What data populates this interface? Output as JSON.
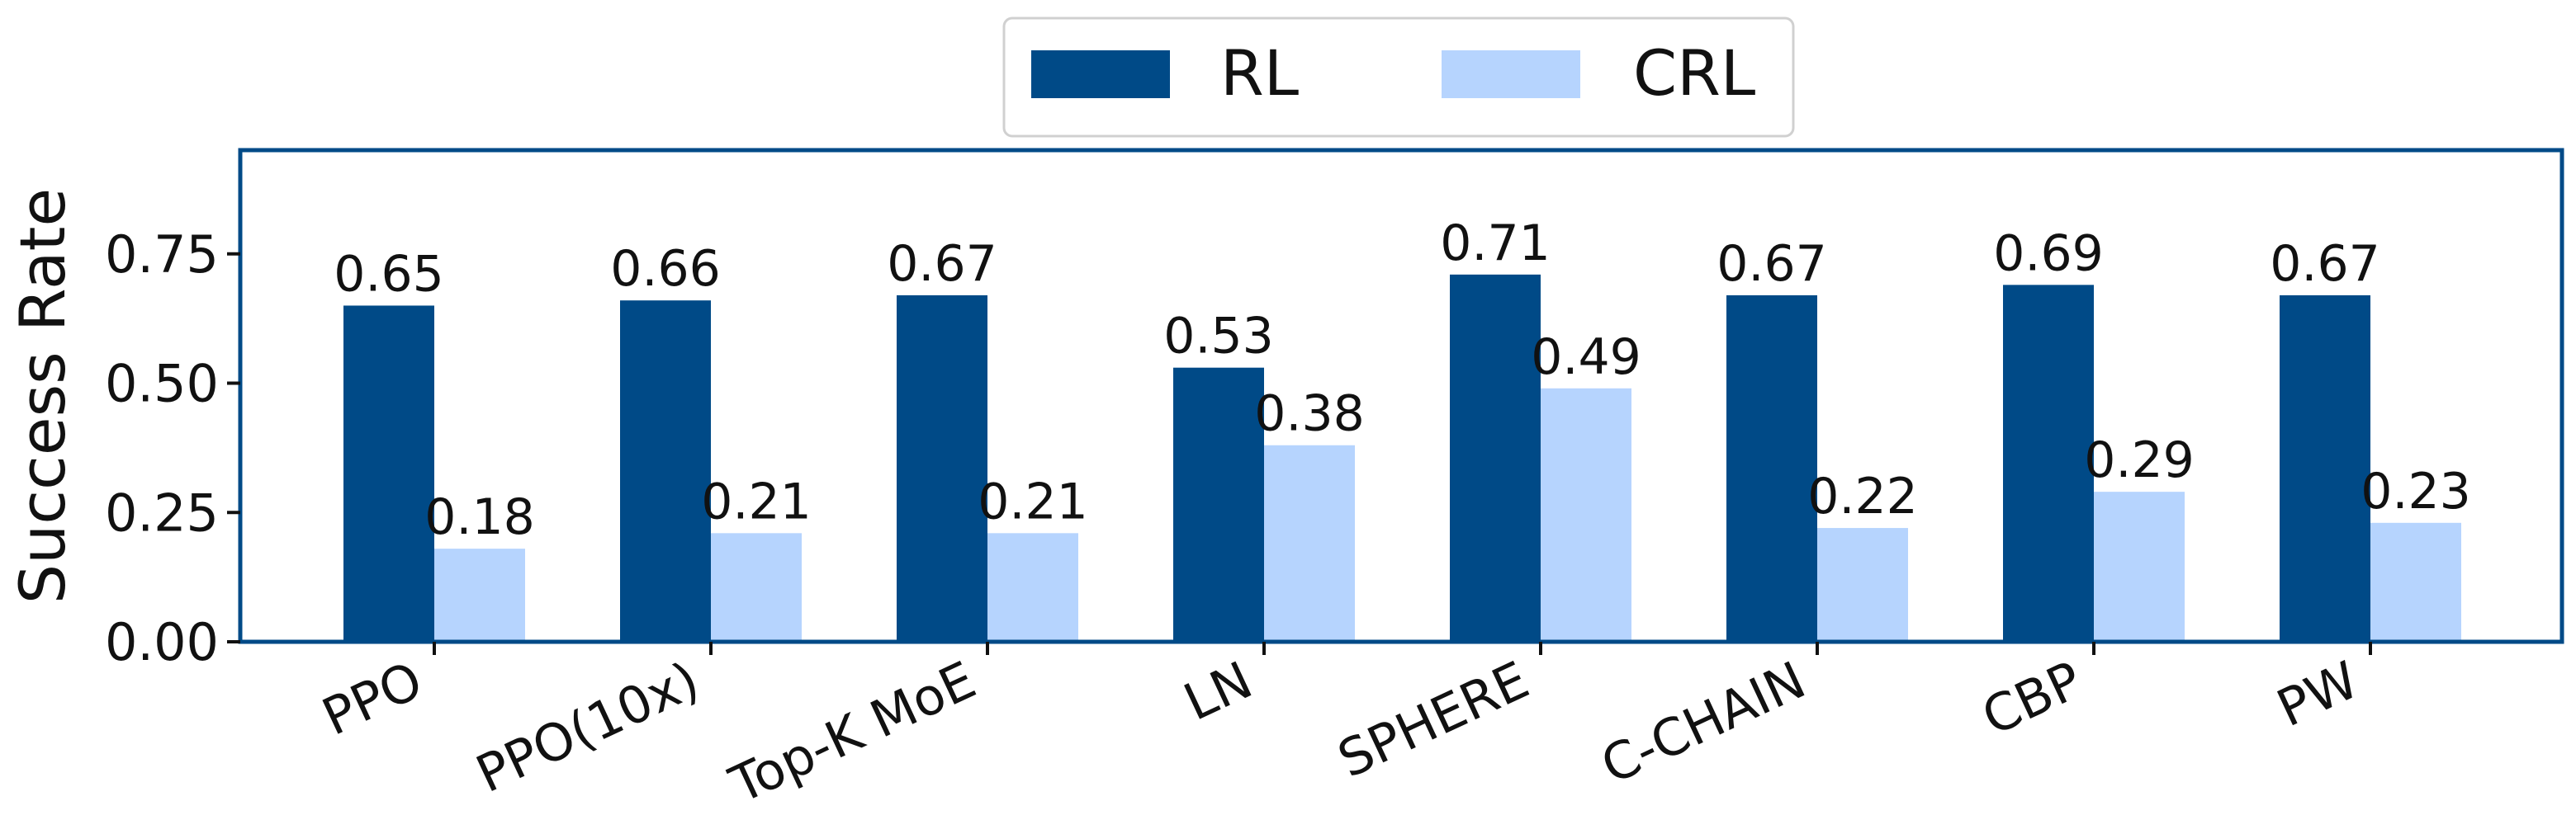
{
  "chart_data": {
    "type": "bar",
    "title": "",
    "xlabel": "",
    "ylabel": "Success Rate",
    "ylim": [
      0,
      0.95
    ],
    "yticks": [
      0.0,
      0.25,
      0.5,
      0.75
    ],
    "ytick_labels": [
      "0.00",
      "0.25",
      "0.50",
      "0.75"
    ],
    "grid": false,
    "legend_position": "top-center",
    "categories": [
      "PPO",
      "PPO(10x)",
      "Top-K MoE",
      "LN",
      "SPHERE",
      "C-CHAIN",
      "CBP",
      "PW"
    ],
    "series": [
      {
        "name": "RL",
        "color": "#004a87",
        "values": [
          0.65,
          0.66,
          0.67,
          0.53,
          0.71,
          0.67,
          0.69,
          0.67
        ],
        "labels": [
          "0.65",
          "0.66",
          "0.67",
          "0.53",
          "0.71",
          "0.67",
          "0.69",
          "0.67"
        ]
      },
      {
        "name": "CRL",
        "color": "#b6d4fe",
        "values": [
          0.18,
          0.21,
          0.21,
          0.38,
          0.49,
          0.22,
          0.29,
          0.23
        ],
        "labels": [
          "0.18",
          "0.21",
          "0.21",
          "0.38",
          "0.49",
          "0.22",
          "0.29",
          "0.23"
        ]
      }
    ],
    "frame_color": "#004a87"
  }
}
